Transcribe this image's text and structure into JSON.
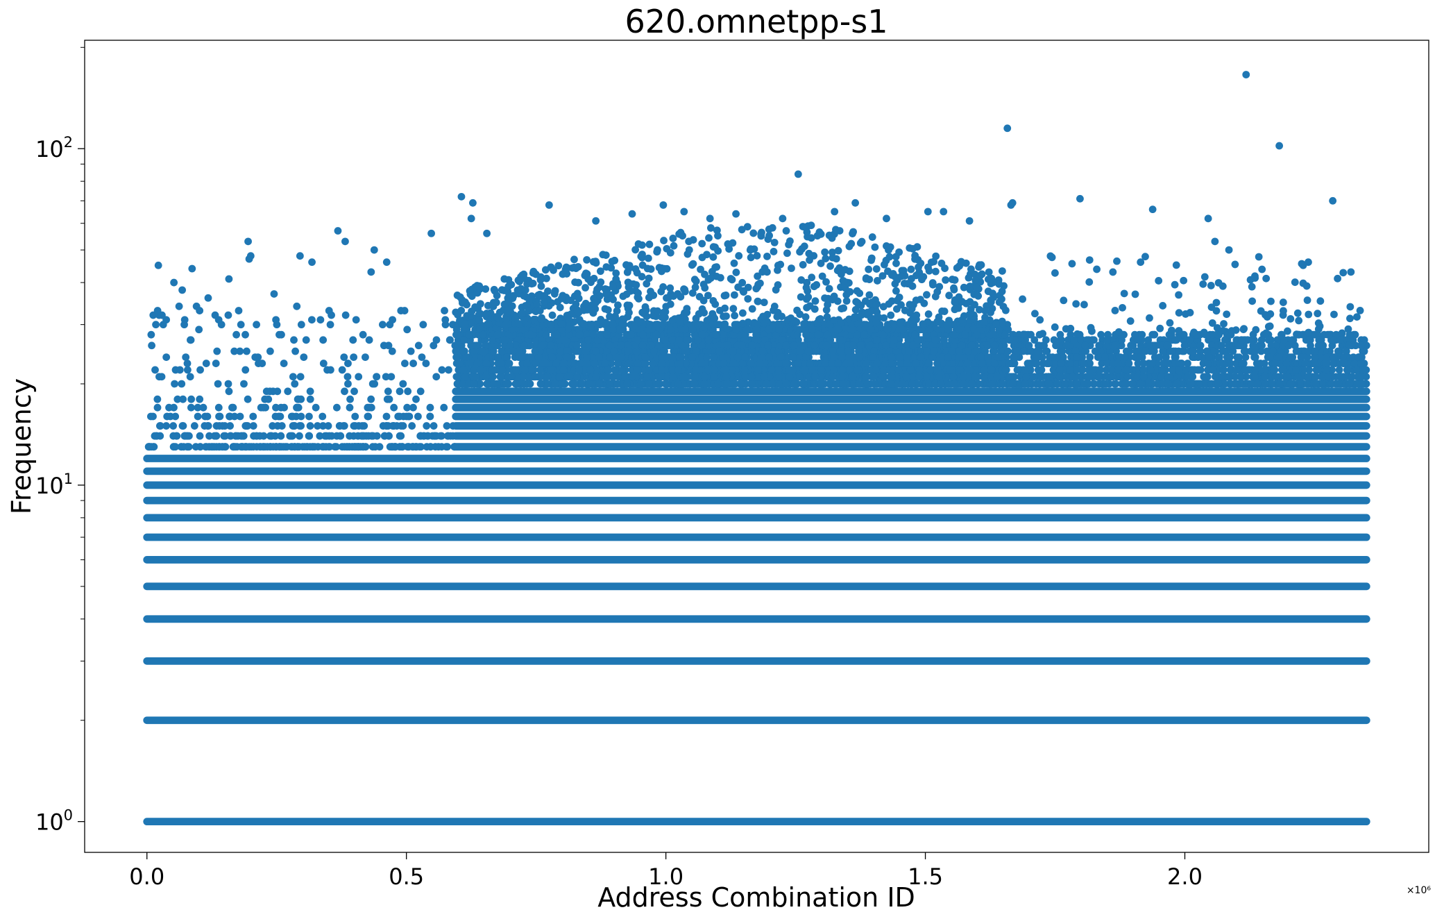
{
  "chart_data": {
    "type": "scatter",
    "title": "620.omnetpp-s1",
    "xlabel": "Address Combination ID",
    "ylabel": "Frequency",
    "x_offset_text": "×10⁶",
    "x_scale": "linear",
    "y_scale": "log",
    "xlim": [
      -0.12,
      2.47
    ],
    "ylim": [
      0.81,
      210
    ],
    "x_ticks": [
      0.0,
      0.5,
      1.0,
      1.5,
      2.0
    ],
    "x_tick_labels": [
      "0.0",
      "0.5",
      "1.0",
      "1.5",
      "2.0"
    ],
    "y_ticks": [
      1,
      10,
      100
    ],
    "y_tick_labels": [
      {
        "base": "10",
        "exp": "0"
      },
      {
        "base": "10",
        "exp": "1"
      },
      {
        "base": "10",
        "exp": "2"
      }
    ],
    "grid": false,
    "marker_color": "#1f77b4",
    "x_unit_multiplier": 1000000,
    "bands": {
      "dense_frequencies": [
        1,
        2,
        3,
        4,
        5,
        6,
        7,
        8,
        9,
        10,
        11,
        12
      ],
      "x_range": [
        0.0,
        2.35
      ],
      "region_1": {
        "x_range": [
          0.0,
          0.595
        ],
        "frequency_max": 15,
        "sparse_above": 12
      },
      "region_2": {
        "x_range": [
          0.595,
          1.66
        ],
        "frequency_max": 30,
        "dense_up_to": 19
      },
      "region_3": {
        "x_range": [
          1.66,
          2.35
        ],
        "frequency_max": 28,
        "dense_up_to": 19
      }
    },
    "outliers": [
      {
        "x": 0.022,
        "y": 45
      },
      {
        "x": 0.052,
        "y": 40
      },
      {
        "x": 0.062,
        "y": 34
      },
      {
        "x": 0.068,
        "y": 38
      },
      {
        "x": 0.072,
        "y": 30
      },
      {
        "x": 0.087,
        "y": 44
      },
      {
        "x": 0.118,
        "y": 36
      },
      {
        "x": 0.158,
        "y": 41
      },
      {
        "x": 0.195,
        "y": 53
      },
      {
        "x": 0.197,
        "y": 47
      },
      {
        "x": 0.2,
        "y": 48
      },
      {
        "x": 0.245,
        "y": 37
      },
      {
        "x": 0.295,
        "y": 48
      },
      {
        "x": 0.318,
        "y": 46
      },
      {
        "x": 0.368,
        "y": 57
      },
      {
        "x": 0.382,
        "y": 53
      },
      {
        "x": 0.432,
        "y": 43
      },
      {
        "x": 0.438,
        "y": 50
      },
      {
        "x": 0.462,
        "y": 46
      },
      {
        "x": 0.548,
        "y": 56
      },
      {
        "x": 0.606,
        "y": 72
      },
      {
        "x": 0.628,
        "y": 69
      },
      {
        "x": 0.625,
        "y": 62
      },
      {
        "x": 0.655,
        "y": 56
      },
      {
        "x": 0.775,
        "y": 68
      },
      {
        "x": 0.865,
        "y": 61
      },
      {
        "x": 0.935,
        "y": 64
      },
      {
        "x": 0.995,
        "y": 68
      },
      {
        "x": 1.035,
        "y": 65
      },
      {
        "x": 1.085,
        "y": 62
      },
      {
        "x": 1.135,
        "y": 64
      },
      {
        "x": 1.225,
        "y": 62
      },
      {
        "x": 1.255,
        "y": 84
      },
      {
        "x": 1.325,
        "y": 65
      },
      {
        "x": 1.365,
        "y": 69
      },
      {
        "x": 1.425,
        "y": 62
      },
      {
        "x": 1.505,
        "y": 65
      },
      {
        "x": 1.535,
        "y": 65
      },
      {
        "x": 1.585,
        "y": 61
      },
      {
        "x": 1.658,
        "y": 115
      },
      {
        "x": 1.668,
        "y": 69
      },
      {
        "x": 1.665,
        "y": 68
      },
      {
        "x": 1.798,
        "y": 71
      },
      {
        "x": 1.938,
        "y": 66
      },
      {
        "x": 2.045,
        "y": 62
      },
      {
        "x": 2.058,
        "y": 53
      },
      {
        "x": 2.085,
        "y": 50
      },
      {
        "x": 2.118,
        "y": 166
      },
      {
        "x": 2.182,
        "y": 102
      },
      {
        "x": 2.228,
        "y": 45
      },
      {
        "x": 2.285,
        "y": 70
      },
      {
        "x": 2.32,
        "y": 43
      }
    ]
  }
}
